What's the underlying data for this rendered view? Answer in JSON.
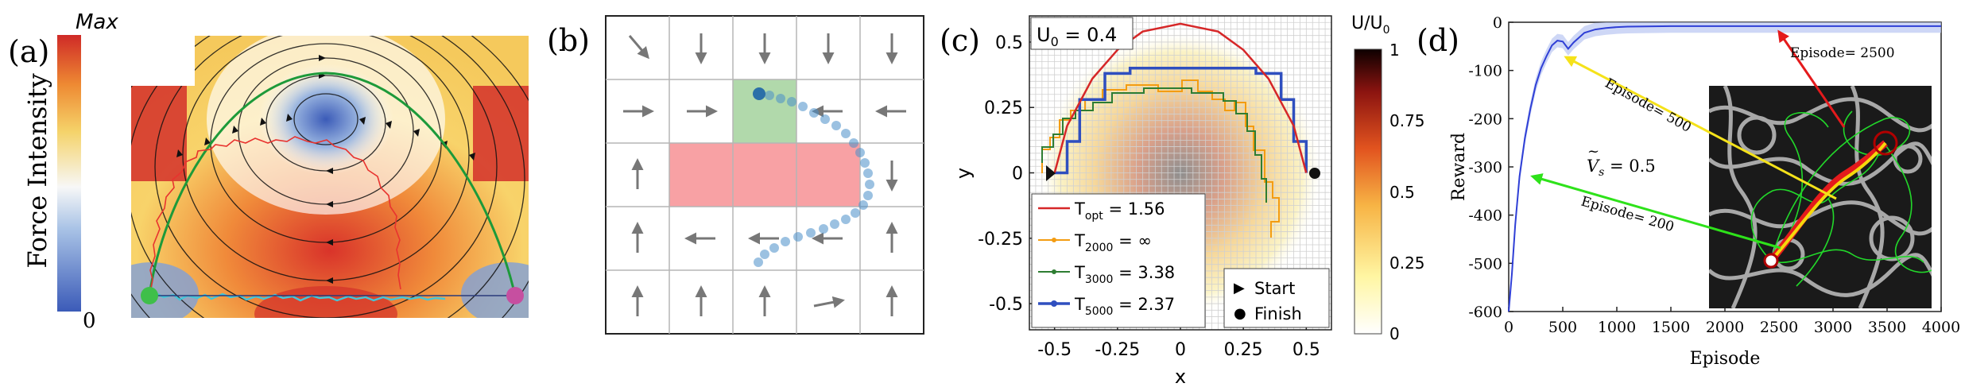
{
  "panel_a": {
    "label": "(a)",
    "colorbar_max": "Max",
    "colorbar_min": "0",
    "colorbar_title": "Force Intensity"
  },
  "panel_b": {
    "label": "(b)"
  },
  "panel_c": {
    "label": "(c)",
    "annotation": "U",
    "annotation_sub": "0",
    "annotation_value": " = 0.4",
    "xlabel": "x",
    "ylabel": "y",
    "colorbar_title": "U/U",
    "colorbar_title_sub": "0",
    "colorbar_ticks": [
      "1",
      "0.75",
      "0.5",
      "0.25",
      "0"
    ],
    "legend": [
      {
        "name": "T",
        "sub": "opt",
        "value": " = 1.56",
        "color": "#d62728"
      },
      {
        "name": "T",
        "sub": "2000",
        "value": " = ∞",
        "color": "#f39c12"
      },
      {
        "name": "T",
        "sub": "3000",
        "value": " = 3.38",
        "color": "#2e7d32"
      },
      {
        "name": "T",
        "sub": "5000",
        "value": " = 2.37",
        "color": "#2f4fbf"
      }
    ],
    "legend2": [
      {
        "marker": "▶",
        "label": "Start"
      },
      {
        "marker": "●",
        "label": "Finish"
      }
    ]
  },
  "panel_d": {
    "label": "(d)",
    "ann_2500": "Episode= 2500",
    "ann_500": "Episode= 500",
    "ann_200": "Episode= 200",
    "vs_symbol": "V",
    "vs_sub": "s",
    "vs_value": " = 0.5"
  },
  "chart_data": [
    {
      "type": "line",
      "title": "",
      "xlabel": "x",
      "ylabel": "y",
      "xlim": [
        -0.6,
        0.6
      ],
      "ylim": [
        -0.6,
        0.6
      ],
      "x_ticks": [
        "-0.5",
        "-0.25",
        "0",
        "0.25",
        "0.5"
      ],
      "y_ticks": [
        "0.5",
        "0.25",
        "0",
        "-0.25",
        "-0.5"
      ],
      "series": [
        {
          "name": "T_opt = 1.56",
          "x": [
            -0.5,
            -0.45,
            -0.35,
            -0.25,
            -0.15,
            0.0,
            0.15,
            0.25,
            0.35,
            0.45,
            0.5
          ],
          "y": [
            0.0,
            0.18,
            0.36,
            0.47,
            0.54,
            0.57,
            0.54,
            0.47,
            0.36,
            0.18,
            0.0
          ]
        },
        {
          "name": "T_5000 = 2.37",
          "x": [
            -0.5,
            -0.45,
            -0.4,
            -0.3,
            -0.2,
            0.0,
            0.2,
            0.3,
            0.4,
            0.45,
            0.5
          ],
          "y": [
            0.0,
            0.12,
            0.28,
            0.38,
            0.4,
            0.4,
            0.4,
            0.38,
            0.28,
            0.12,
            0.0
          ]
        }
      ],
      "start": [
        -0.5,
        0.0
      ],
      "finish": [
        0.5,
        0.0
      ]
    },
    {
      "type": "line",
      "title": "",
      "xlabel": "Episode",
      "ylabel": "Reward",
      "xlim": [
        0,
        4000
      ],
      "ylim": [
        -600,
        0
      ],
      "x_ticks": [
        "0",
        "500",
        "1000",
        "1500",
        "2000",
        "2500",
        "3000",
        "3500",
        "4000"
      ],
      "y_ticks": [
        "0",
        "-100",
        "-200",
        "-300",
        "-400",
        "-500",
        "-600"
      ],
      "series": [
        {
          "name": "Reward",
          "x": [
            0,
            30,
            60,
            100,
            150,
            200,
            250,
            300,
            350,
            400,
            450,
            500,
            550,
            600,
            650,
            700,
            800,
            900,
            1000,
            1100,
            1500,
            2000,
            2500,
            3000,
            3500,
            4000
          ],
          "y": [
            -600,
            -520,
            -420,
            -320,
            -240,
            -180,
            -130,
            -95,
            -70,
            -48,
            -38,
            -40,
            -55,
            -42,
            -32,
            -22,
            -15,
            -12,
            -10,
            -9,
            -8,
            -8,
            -8,
            -8,
            -8,
            -8
          ]
        }
      ]
    }
  ]
}
